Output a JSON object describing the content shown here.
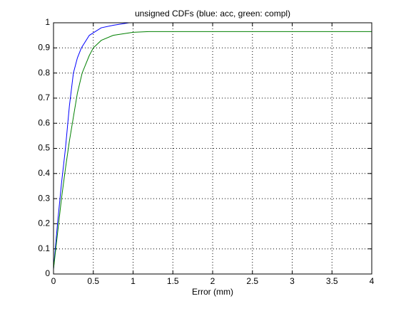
{
  "chart_data": {
    "type": "line",
    "title": "unsigned CDFs (blue: acc, green: compl)",
    "x_label": "Error (mm)",
    "series": [
      {
        "color": "#0000ff",
        "x": [
          0,
          0.05,
          0.1,
          0.15,
          0.2,
          0.25,
          0.3,
          0.35,
          0.45,
          0.6,
          0.75,
          0.95,
          1
        ],
        "values": [
          0.02,
          0.2,
          0.36,
          0.5,
          0.67,
          0.8,
          0.86,
          0.9,
          0.95,
          0.98,
          0.99,
          1,
          1
        ]
      },
      {
        "color": "#008000",
        "x": [
          0,
          0.05,
          0.1,
          0.15,
          0.2,
          0.3,
          0.36,
          0.45,
          0.5,
          0.6,
          0.75,
          1,
          1.2,
          2,
          3,
          4
        ],
        "values": [
          0.02,
          0.16,
          0.3,
          0.42,
          0.53,
          0.72,
          0.8,
          0.87,
          0.9,
          0.93,
          0.95,
          0.962,
          0.965,
          0.965,
          0.965,
          0.965
        ]
      }
    ],
    "xlim": [
      0,
      4
    ],
    "xticks": [
      0,
      0.5,
      1,
      1.5,
      2,
      2.5,
      3,
      3.5,
      4
    ],
    "ylim": [
      0,
      1
    ],
    "yticks": [
      0,
      0.1,
      0.2,
      0.3,
      0.4,
      0.5,
      0.6,
      0.7,
      0.8,
      0.9,
      1
    ],
    "grid": true
  }
}
